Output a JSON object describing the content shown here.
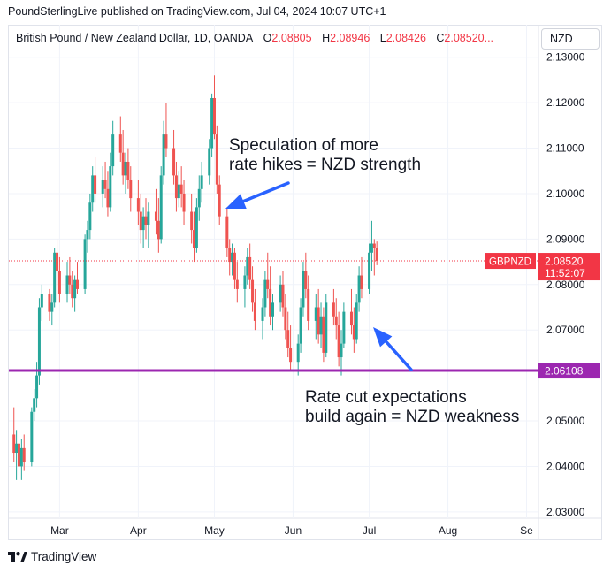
{
  "header": {
    "publisher_line": "PoundSterlingLive published on TradingView.com, Jul 04, 2024 10:07 UTC+1"
  },
  "legend": {
    "instrument": "British Pound / New Zealand Dollar, 1D, OANDA",
    "o_label": "O",
    "o_value": "2.08805",
    "h_label": "H",
    "h_value": "2.08946",
    "l_label": "L",
    "l_value": "2.08426",
    "c_label": "C",
    "c_value": "2.08520..."
  },
  "currency_box": "NZD",
  "price_tag": {
    "symbol": "GBPNZD",
    "price": "2.08520",
    "countdown": "11:52:07"
  },
  "level_tag": "2.06108",
  "annotations": {
    "top_line1": "Speculation of more",
    "top_line2": "rate hikes = NZD strength",
    "bottom_line1": "Rate cut expectations",
    "bottom_line2": "build again = NZD weakness"
  },
  "footer": {
    "brand": "TradingView",
    "logo_mark": "17"
  },
  "colors": {
    "up": "#26a69a",
    "down": "#ef5350",
    "level_line": "#9c27b0",
    "price_tag": "#f23645",
    "arrow": "#2962ff",
    "grid": "#f0f3fa"
  },
  "chart_data": {
    "type": "candlestick",
    "title": "British Pound / New Zealand Dollar, 1D, OANDA",
    "y_axis": {
      "ticks": [
        "2.13000",
        "2.12000",
        "2.11000",
        "2.10000",
        "2.09000",
        "2.08000",
        "2.07000",
        "2.05000",
        "2.04000",
        "2.03000"
      ],
      "tick_values": [
        2.13,
        2.12,
        2.11,
        2.1,
        2.09,
        2.08,
        2.07,
        2.05,
        2.04,
        2.03
      ],
      "ylim": [
        2.029,
        2.1315
      ],
      "position": "right"
    },
    "x_axis": {
      "ticks": [
        "Mar",
        "Apr",
        "May",
        "Jun",
        "Jul",
        "Aug",
        "Se"
      ],
      "tick_dates": [
        "2024-03-01",
        "2024-04-01",
        "2024-05-01",
        "2024-06-01",
        "2024-07-01",
        "2024-08-01",
        "2024-09-01"
      ],
      "xlim": [
        "2024-02-10",
        "2024-09-05"
      ]
    },
    "horizontal_line": {
      "value": 2.06108,
      "label": "2.06108"
    },
    "last_price_line": {
      "value": 2.0852,
      "style": "dotted"
    },
    "grid": true,
    "candles": [
      {
        "d": "2024-02-12",
        "o": 2.047,
        "h": 2.053,
        "l": 2.041,
        "c": 2.043
      },
      {
        "d": "2024-02-13",
        "o": 2.043,
        "h": 2.048,
        "l": 2.037,
        "c": 2.045
      },
      {
        "d": "2024-02-14",
        "o": 2.045,
        "h": 2.047,
        "l": 2.038,
        "c": 2.04
      },
      {
        "d": "2024-02-15",
        "o": 2.04,
        "h": 2.046,
        "l": 2.037,
        "c": 2.044
      },
      {
        "d": "2024-02-16",
        "o": 2.044,
        "h": 2.047,
        "l": 2.039,
        "c": 2.041
      },
      {
        "d": "2024-02-19",
        "o": 2.041,
        "h": 2.053,
        "l": 2.04,
        "c": 2.052
      },
      {
        "d": "2024-02-20",
        "o": 2.052,
        "h": 2.057,
        "l": 2.05,
        "c": 2.055
      },
      {
        "d": "2024-02-21",
        "o": 2.055,
        "h": 2.063,
        "l": 2.053,
        "c": 2.06
      },
      {
        "d": "2024-02-22",
        "o": 2.06,
        "h": 2.077,
        "l": 2.058,
        "c": 2.075
      },
      {
        "d": "2024-02-23",
        "o": 2.075,
        "h": 2.08,
        "l": 2.072,
        "c": 2.078
      },
      {
        "d": "2024-02-26",
        "o": 2.078,
        "h": 2.079,
        "l": 2.072,
        "c": 2.074
      },
      {
        "d": "2024-02-27",
        "o": 2.074,
        "h": 2.078,
        "l": 2.071,
        "c": 2.076
      },
      {
        "d": "2024-02-28",
        "o": 2.076,
        "h": 2.088,
        "l": 2.075,
        "c": 2.087
      },
      {
        "d": "2024-02-29",
        "o": 2.087,
        "h": 2.09,
        "l": 2.08,
        "c": 2.083
      },
      {
        "d": "2024-03-01",
        "o": 2.083,
        "h": 2.086,
        "l": 2.076,
        "c": 2.078
      },
      {
        "d": "2024-03-04",
        "o": 2.078,
        "h": 2.085,
        "l": 2.076,
        "c": 2.082
      },
      {
        "d": "2024-03-05",
        "o": 2.082,
        "h": 2.086,
        "l": 2.078,
        "c": 2.08
      },
      {
        "d": "2024-03-06",
        "o": 2.08,
        "h": 2.083,
        "l": 2.075,
        "c": 2.077
      },
      {
        "d": "2024-03-07",
        "o": 2.077,
        "h": 2.082,
        "l": 2.074,
        "c": 2.081
      },
      {
        "d": "2024-03-08",
        "o": 2.081,
        "h": 2.085,
        "l": 2.078,
        "c": 2.079
      },
      {
        "d": "2024-03-11",
        "o": 2.079,
        "h": 2.091,
        "l": 2.078,
        "c": 2.09
      },
      {
        "d": "2024-03-12",
        "o": 2.09,
        "h": 2.094,
        "l": 2.087,
        "c": 2.092
      },
      {
        "d": "2024-03-13",
        "o": 2.092,
        "h": 2.1,
        "l": 2.09,
        "c": 2.098
      },
      {
        "d": "2024-03-14",
        "o": 2.098,
        "h": 2.106,
        "l": 2.096,
        "c": 2.104
      },
      {
        "d": "2024-03-15",
        "o": 2.104,
        "h": 2.108,
        "l": 2.098,
        "c": 2.1
      },
      {
        "d": "2024-03-18",
        "o": 2.1,
        "h": 2.106,
        "l": 2.097,
        "c": 2.103
      },
      {
        "d": "2024-03-19",
        "o": 2.103,
        "h": 2.107,
        "l": 2.099,
        "c": 2.101
      },
      {
        "d": "2024-03-20",
        "o": 2.101,
        "h": 2.105,
        "l": 2.095,
        "c": 2.097
      },
      {
        "d": "2024-03-21",
        "o": 2.097,
        "h": 2.109,
        "l": 2.096,
        "c": 2.106
      },
      {
        "d": "2024-03-22",
        "o": 2.106,
        "h": 2.116,
        "l": 2.104,
        "c": 2.113
      },
      {
        "d": "2024-03-25",
        "o": 2.113,
        "h": 2.117,
        "l": 2.107,
        "c": 2.109
      },
      {
        "d": "2024-03-26",
        "o": 2.109,
        "h": 2.114,
        "l": 2.102,
        "c": 2.104
      },
      {
        "d": "2024-03-27",
        "o": 2.104,
        "h": 2.109,
        "l": 2.1,
        "c": 2.107
      },
      {
        "d": "2024-03-28",
        "o": 2.107,
        "h": 2.11,
        "l": 2.101,
        "c": 2.103
      },
      {
        "d": "2024-03-29",
        "o": 2.103,
        "h": 2.106,
        "l": 2.096,
        "c": 2.099
      },
      {
        "d": "2024-04-01",
        "o": 2.099,
        "h": 2.103,
        "l": 2.093,
        "c": 2.096
      },
      {
        "d": "2024-04-02",
        "o": 2.096,
        "h": 2.1,
        "l": 2.089,
        "c": 2.092
      },
      {
        "d": "2024-04-03",
        "o": 2.092,
        "h": 2.097,
        "l": 2.088,
        "c": 2.095
      },
      {
        "d": "2024-04-04",
        "o": 2.095,
        "h": 2.099,
        "l": 2.09,
        "c": 2.093
      },
      {
        "d": "2024-04-05",
        "o": 2.093,
        "h": 2.098,
        "l": 2.088,
        "c": 2.096
      },
      {
        "d": "2024-04-08",
        "o": 2.096,
        "h": 2.101,
        "l": 2.091,
        "c": 2.094
      },
      {
        "d": "2024-04-09",
        "o": 2.094,
        "h": 2.099,
        "l": 2.087,
        "c": 2.09
      },
      {
        "d": "2024-04-10",
        "o": 2.09,
        "h": 2.106,
        "l": 2.089,
        "c": 2.104
      },
      {
        "d": "2024-04-11",
        "o": 2.104,
        "h": 2.116,
        "l": 2.102,
        "c": 2.113
      },
      {
        "d": "2024-04-12",
        "o": 2.113,
        "h": 2.12,
        "l": 2.108,
        "c": 2.11
      },
      {
        "d": "2024-04-15",
        "o": 2.11,
        "h": 2.114,
        "l": 2.102,
        "c": 2.104
      },
      {
        "d": "2024-04-16",
        "o": 2.104,
        "h": 2.107,
        "l": 2.096,
        "c": 2.099
      },
      {
        "d": "2024-04-17",
        "o": 2.099,
        "h": 2.105,
        "l": 2.097,
        "c": 2.102
      },
      {
        "d": "2024-04-18",
        "o": 2.102,
        "h": 2.106,
        "l": 2.097,
        "c": 2.1
      },
      {
        "d": "2024-04-19",
        "o": 2.1,
        "h": 2.103,
        "l": 2.093,
        "c": 2.096
      },
      {
        "d": "2024-04-22",
        "o": 2.096,
        "h": 2.1,
        "l": 2.089,
        "c": 2.092
      },
      {
        "d": "2024-04-23",
        "o": 2.092,
        "h": 2.096,
        "l": 2.085,
        "c": 2.088
      },
      {
        "d": "2024-04-24",
        "o": 2.088,
        "h": 2.099,
        "l": 2.087,
        "c": 2.097
      },
      {
        "d": "2024-04-25",
        "o": 2.097,
        "h": 2.104,
        "l": 2.094,
        "c": 2.101
      },
      {
        "d": "2024-04-26",
        "o": 2.101,
        "h": 2.107,
        "l": 2.098,
        "c": 2.104
      },
      {
        "d": "2024-04-29",
        "o": 2.104,
        "h": 2.112,
        "l": 2.102,
        "c": 2.11
      },
      {
        "d": "2024-04-30",
        "o": 2.11,
        "h": 2.122,
        "l": 2.108,
        "c": 2.121
      },
      {
        "d": "2024-05-01",
        "o": 2.121,
        "h": 2.126,
        "l": 2.112,
        "c": 2.113
      },
      {
        "d": "2024-05-02",
        "o": 2.113,
        "h": 2.115,
        "l": 2.1,
        "c": 2.102
      },
      {
        "d": "2024-05-03",
        "o": 2.102,
        "h": 2.104,
        "l": 2.093,
        "c": 2.095
      },
      {
        "d": "2024-05-06",
        "o": 2.095,
        "h": 2.097,
        "l": 2.086,
        "c": 2.088
      },
      {
        "d": "2024-05-07",
        "o": 2.088,
        "h": 2.09,
        "l": 2.082,
        "c": 2.085
      },
      {
        "d": "2024-05-08",
        "o": 2.085,
        "h": 2.089,
        "l": 2.082,
        "c": 2.087
      },
      {
        "d": "2024-05-09",
        "o": 2.087,
        "h": 2.088,
        "l": 2.079,
        "c": 2.081
      },
      {
        "d": "2024-05-10",
        "o": 2.081,
        "h": 2.085,
        "l": 2.076,
        "c": 2.079
      },
      {
        "d": "2024-05-13",
        "o": 2.079,
        "h": 2.084,
        "l": 2.075,
        "c": 2.082
      },
      {
        "d": "2024-05-14",
        "o": 2.082,
        "h": 2.088,
        "l": 2.08,
        "c": 2.086
      },
      {
        "d": "2024-05-15",
        "o": 2.086,
        "h": 2.089,
        "l": 2.079,
        "c": 2.081
      },
      {
        "d": "2024-05-16",
        "o": 2.081,
        "h": 2.084,
        "l": 2.074,
        "c": 2.076
      },
      {
        "d": "2024-05-17",
        "o": 2.076,
        "h": 2.079,
        "l": 2.07,
        "c": 2.072
      },
      {
        "d": "2024-05-20",
        "o": 2.072,
        "h": 2.077,
        "l": 2.068,
        "c": 2.075
      },
      {
        "d": "2024-05-21",
        "o": 2.075,
        "h": 2.083,
        "l": 2.073,
        "c": 2.081
      },
      {
        "d": "2024-05-22",
        "o": 2.081,
        "h": 2.087,
        "l": 2.077,
        "c": 2.079
      },
      {
        "d": "2024-05-23",
        "o": 2.079,
        "h": 2.084,
        "l": 2.071,
        "c": 2.073
      },
      {
        "d": "2024-05-24",
        "o": 2.073,
        "h": 2.078,
        "l": 2.07,
        "c": 2.076
      },
      {
        "d": "2024-05-27",
        "o": 2.076,
        "h": 2.082,
        "l": 2.074,
        "c": 2.08
      },
      {
        "d": "2024-05-28",
        "o": 2.08,
        "h": 2.083,
        "l": 2.073,
        "c": 2.075
      },
      {
        "d": "2024-05-29",
        "o": 2.075,
        "h": 2.078,
        "l": 2.068,
        "c": 2.07
      },
      {
        "d": "2024-05-30",
        "o": 2.07,
        "h": 2.074,
        "l": 2.064,
        "c": 2.066
      },
      {
        "d": "2024-05-31",
        "o": 2.066,
        "h": 2.071,
        "l": 2.061,
        "c": 2.063
      },
      {
        "d": "2024-06-03",
        "o": 2.063,
        "h": 2.069,
        "l": 2.06,
        "c": 2.067
      },
      {
        "d": "2024-06-04",
        "o": 2.067,
        "h": 2.077,
        "l": 2.065,
        "c": 2.075
      },
      {
        "d": "2024-06-05",
        "o": 2.075,
        "h": 2.085,
        "l": 2.073,
        "c": 2.083
      },
      {
        "d": "2024-06-06",
        "o": 2.083,
        "h": 2.087,
        "l": 2.077,
        "c": 2.079
      },
      {
        "d": "2024-06-07",
        "o": 2.079,
        "h": 2.082,
        "l": 2.07,
        "c": 2.072
      },
      {
        "d": "2024-06-10",
        "o": 2.072,
        "h": 2.078,
        "l": 2.068,
        "c": 2.075
      },
      {
        "d": "2024-06-11",
        "o": 2.075,
        "h": 2.079,
        "l": 2.067,
        "c": 2.069
      },
      {
        "d": "2024-06-12",
        "o": 2.069,
        "h": 2.076,
        "l": 2.066,
        "c": 2.073
      },
      {
        "d": "2024-06-13",
        "o": 2.073,
        "h": 2.075,
        "l": 2.063,
        "c": 2.065
      },
      {
        "d": "2024-06-14",
        "o": 2.065,
        "h": 2.078,
        "l": 2.064,
        "c": 2.076
      },
      {
        "d": "2024-06-17",
        "o": 2.076,
        "h": 2.079,
        "l": 2.071,
        "c": 2.073
      },
      {
        "d": "2024-06-18",
        "o": 2.073,
        "h": 2.077,
        "l": 2.068,
        "c": 2.071
      },
      {
        "d": "2024-06-19",
        "o": 2.071,
        "h": 2.074,
        "l": 2.062,
        "c": 2.064
      },
      {
        "d": "2024-06-20",
        "o": 2.064,
        "h": 2.07,
        "l": 2.06,
        "c": 2.067
      },
      {
        "d": "2024-06-21",
        "o": 2.067,
        "h": 2.076,
        "l": 2.066,
        "c": 2.074
      },
      {
        "d": "2024-06-24",
        "o": 2.074,
        "h": 2.079,
        "l": 2.069,
        "c": 2.071
      },
      {
        "d": "2024-06-25",
        "o": 2.071,
        "h": 2.075,
        "l": 2.065,
        "c": 2.068
      },
      {
        "d": "2024-06-26",
        "o": 2.068,
        "h": 2.078,
        "l": 2.067,
        "c": 2.076
      },
      {
        "d": "2024-06-27",
        "o": 2.076,
        "h": 2.084,
        "l": 2.074,
        "c": 2.082
      },
      {
        "d": "2024-06-28",
        "o": 2.082,
        "h": 2.086,
        "l": 2.077,
        "c": 2.079
      },
      {
        "d": "2024-07-01",
        "o": 2.079,
        "h": 2.089,
        "l": 2.078,
        "c": 2.087
      },
      {
        "d": "2024-07-02",
        "o": 2.087,
        "h": 2.094,
        "l": 2.083,
        "c": 2.089
      },
      {
        "d": "2024-07-03",
        "o": 2.089,
        "h": 2.09,
        "l": 2.082,
        "c": 2.088
      },
      {
        "d": "2024-07-04",
        "o": 2.08805,
        "h": 2.08946,
        "l": 2.08426,
        "c": 2.0852
      }
    ]
  }
}
